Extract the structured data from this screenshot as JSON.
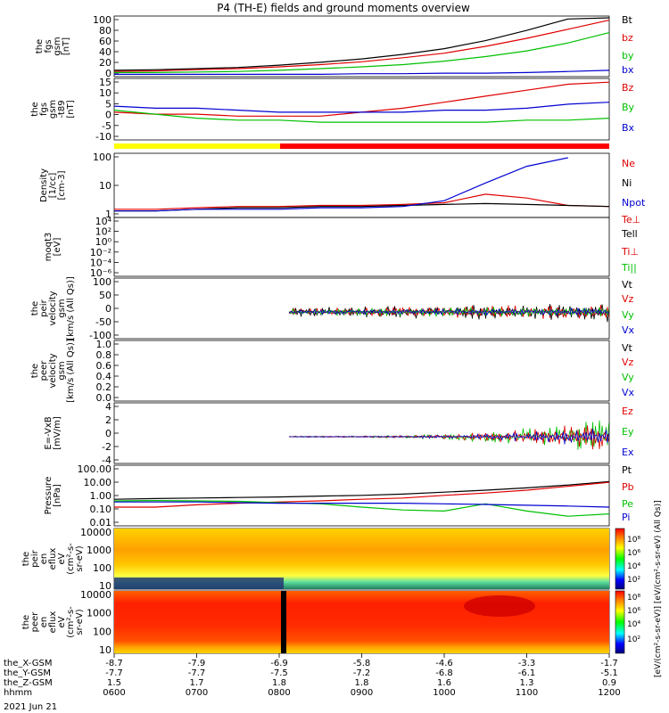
{
  "chart_data": {
    "type": "line",
    "title": "P4 (TH-E) fields and ground moments overview",
    "date_label": "2021 Jun 21",
    "x_ticks": [
      "0600",
      "0700",
      "0800",
      "0900",
      "1000",
      "1100",
      "1200"
    ],
    "orbit_rows": [
      {
        "label": "the_X-GSM",
        "values": [
          "-8.7",
          "-7.9",
          "-6.9",
          "-5.8",
          "-4.6",
          "-3.3",
          "-1.7"
        ]
      },
      {
        "label": "the_Y-GSM",
        "values": [
          "-7.7",
          "-7.7",
          "-7.5",
          "-7.2",
          "-6.8",
          "-6.1",
          "-5.1"
        ]
      },
      {
        "label": "the_Z-GSM",
        "values": [
          "1.5",
          "1.7",
          "1.8",
          "1.8",
          "1.6",
          "1.3",
          "0.9"
        ]
      },
      {
        "label": "hhmm",
        "values": [
          "0600",
          "0700",
          "0800",
          "0900",
          "1000",
          "1100",
          "1200"
        ]
      }
    ],
    "panels": [
      {
        "id": "fgs-gsm",
        "ylabel": [
          "the",
          "fgs",
          "gsm",
          "[nT]"
        ],
        "yticks": [
          "100",
          "80",
          "60",
          "40",
          "20",
          "0"
        ],
        "legend": [
          {
            "name": "Bt",
            "color": "#000000"
          },
          {
            "name": "bz",
            "color": "#e00000"
          },
          {
            "name": "by",
            "color": "#00c000"
          },
          {
            "name": "bx",
            "color": "#0000d0"
          }
        ],
        "x": [
          6,
          6.5,
          7,
          7.5,
          8,
          8.5,
          9,
          9.5,
          10,
          10.5,
          11,
          11.5,
          12
        ],
        "series": [
          {
            "name": "Bt",
            "values": [
              8,
              9,
              11,
              13,
              17,
              22,
              28,
              36,
              46,
              60,
              78,
              98,
              118
            ]
          },
          {
            "name": "bz",
            "values": [
              6,
              7,
              9,
              11,
              14,
              18,
              23,
              30,
              38,
              50,
              64,
              80,
              96
            ]
          },
          {
            "name": "by",
            "values": [
              4,
              4,
              5,
              6,
              8,
              11,
              14,
              18,
              24,
              32,
              42,
              56,
              74
            ]
          },
          {
            "name": "bx",
            "values": [
              1,
              1,
              1,
              1,
              1,
              1,
              2,
              2,
              3,
              3,
              4,
              6,
              8
            ]
          }
        ]
      },
      {
        "id": "fgs-dsl",
        "ylabel": [
          "the",
          "fgs",
          "gsm",
          "-t89",
          "[nT]"
        ],
        "yticks": [
          "15",
          "10",
          "5",
          "0",
          "-5",
          "-10"
        ],
        "legend": [
          {
            "name": "Bz",
            "color": "#e00000"
          },
          {
            "name": "By",
            "color": "#00c000"
          },
          {
            "name": "Bx",
            "color": "#0000d0"
          }
        ],
        "x": [
          6,
          6.5,
          7,
          7.5,
          8,
          8.5,
          9,
          9.5,
          10,
          10.5,
          11,
          11.5,
          12
        ],
        "series": [
          {
            "name": "Bz",
            "values": [
              -1,
              -2,
              -2,
              -3,
              -3,
              -3,
              -1,
              1,
              4,
              7,
              10,
              13,
              14
            ]
          },
          {
            "name": "By",
            "values": [
              0,
              -2,
              -4,
              -5,
              -5,
              -6,
              -6,
              -6,
              -6,
              -6,
              -5,
              -5,
              -4
            ]
          },
          {
            "name": "Bx",
            "values": [
              2,
              1,
              1,
              0,
              -1,
              -1,
              -1,
              -1,
              0,
              0,
              1,
              3,
              4
            ]
          }
        ]
      },
      {
        "id": "density",
        "ylabel": [
          "Density",
          "[1/cc]",
          "[cm-3]"
        ],
        "yticks": [
          "100",
          "10",
          "1"
        ],
        "legend": [
          {
            "name": "Ne",
            "color": "#e00000"
          },
          {
            "name": "Ni",
            "color": "#000000"
          },
          {
            "name": "Npot",
            "color": "#0000d0"
          },
          {
            "name": "Te⊥",
            "color": "#e00000"
          }
        ],
        "x": [
          6,
          6.5,
          7,
          7.5,
          8,
          8.5,
          9,
          9.5,
          10,
          10.5,
          11,
          11.5,
          12
        ],
        "series": [
          {
            "name": "Ne",
            "values": [
              0.6,
              0.6,
              0.7,
              0.8,
              0.8,
              0.9,
              0.9,
              1,
              1.2,
              3,
              2,
              0.9,
              0.8
            ]
          },
          {
            "name": "Ni",
            "values": [
              0.5,
              0.5,
              0.6,
              0.7,
              0.7,
              0.8,
              0.8,
              0.9,
              1,
              1.1,
              1,
              0.9,
              0.8
            ]
          },
          {
            "name": "Npot",
            "values": [
              0.5,
              0.5,
              0.6,
              0.6,
              0.6,
              0.7,
              0.7,
              0.8,
              1.5,
              10,
              60,
              150,
              null
            ]
          }
        ]
      },
      {
        "id": "temperature",
        "ylabel": [
          "moqt3",
          "[eV]"
        ],
        "yticks": [
          "10⁴",
          "10²",
          "10⁰",
          "10⁻²",
          "10⁻⁴",
          "10⁻⁶"
        ],
        "legend": [
          {
            "name": "Tell",
            "color": "#000000"
          },
          {
            "name": "Ti⊥",
            "color": "#e00000"
          },
          {
            "name": "Ti||",
            "color": "#00c000"
          }
        ],
        "series": []
      },
      {
        "id": "peir-velocity",
        "ylabel": [
          "the",
          "peir",
          "velocity",
          "gsm",
          "[km/s (All Qs)]"
        ],
        "yticks": [
          "100",
          "50",
          "0",
          "-50",
          "-100"
        ],
        "legend": [
          {
            "name": "Vt",
            "color": "#000000"
          },
          {
            "name": "Vz",
            "color": "#e00000"
          },
          {
            "name": "Vy",
            "color": "#00c000"
          },
          {
            "name": "Vx",
            "color": "#0000d0"
          }
        ],
        "series": []
      },
      {
        "id": "peer-velocity",
        "ylabel": [
          "the",
          "peer",
          "velocity",
          "gsm",
          "[km/s (All Qs)]"
        ],
        "yticks": [
          "1.0",
          "0.8",
          "0.6",
          "0.4",
          "0.2",
          "0.0"
        ],
        "legend": [
          {
            "name": "Vt",
            "color": "#000000"
          },
          {
            "name": "Vz",
            "color": "#e00000"
          },
          {
            "name": "Vy",
            "color": "#00c000"
          },
          {
            "name": "Vx",
            "color": "#0000d0"
          }
        ],
        "series": []
      },
      {
        "id": "efield",
        "ylabel": [
          "E=-VxB",
          "[mV/m]"
        ],
        "yticks": [
          "4",
          "2",
          "0",
          "-2",
          "-4"
        ],
        "legend": [
          {
            "name": "Ez",
            "color": "#e00000"
          },
          {
            "name": "Ey",
            "color": "#00c000"
          },
          {
            "name": "Ex",
            "color": "#0000d0"
          }
        ],
        "series": []
      },
      {
        "id": "pressure",
        "ylabel": [
          "Pressure",
          "[nPa]"
        ],
        "yticks": [
          "100.00",
          "10.00",
          "1.00",
          "0.10",
          "0.01"
        ],
        "legend": [
          {
            "name": "Pt",
            "color": "#000000"
          },
          {
            "name": "Pb",
            "color": "#e00000"
          },
          {
            "name": "Pe",
            "color": "#00c000"
          },
          {
            "name": "Pi",
            "color": "#0000d0"
          }
        ],
        "x": [
          6,
          6.5,
          7,
          7.5,
          8,
          8.5,
          9,
          9.5,
          10,
          10.5,
          11,
          11.5,
          12
        ],
        "series": [
          {
            "name": "Pt",
            "values": [
              0.4,
              0.45,
              0.5,
              0.55,
              0.6,
              0.7,
              0.8,
              1,
              1.4,
              2,
              3,
              5,
              9
            ]
          },
          {
            "name": "Pb",
            "values": [
              0.1,
              0.1,
              0.15,
              0.2,
              0.25,
              0.3,
              0.4,
              0.5,
              0.8,
              1.2,
              2,
              4,
              8
            ]
          },
          {
            "name": "Pe",
            "values": [
              0.3,
              0.32,
              0.3,
              0.28,
              0.22,
              0.18,
              0.1,
              0.06,
              0.05,
              0.18,
              0.05,
              0.02,
              0.03
            ]
          },
          {
            "name": "Pi",
            "values": [
              0.25,
              0.25,
              0.25,
              0.22,
              0.2,
              0.2,
              0.2,
              0.2,
              0.18,
              0.16,
              0.14,
              0.12,
              0.1
            ]
          }
        ]
      },
      {
        "id": "peir-eflux",
        "ylabel": [
          "the",
          "peir",
          "en",
          "eflux",
          "eV",
          "(cm²-s-",
          "sr-eV)"
        ],
        "yticks": [
          "10000",
          "1000",
          "100",
          "10"
        ],
        "series": []
      },
      {
        "id": "peer-eflux",
        "ylabel": [
          "the",
          "peer",
          "en",
          "eflux",
          "eV",
          "(cm²-s-",
          "sr-eV)"
        ],
        "yticks": [
          "10000",
          "1000",
          "100",
          "10"
        ],
        "series": []
      }
    ],
    "colorbar_ticks": [
      "10⁸",
      "10⁶",
      "10⁴",
      "10²",
      "10⁸",
      "10⁶",
      "10⁴",
      "10²"
    ],
    "colorbar_label": "[eV/(cm²-s-sr-eV)] [eV/(cm²-s-sr-eV) (All Qs)]"
  }
}
